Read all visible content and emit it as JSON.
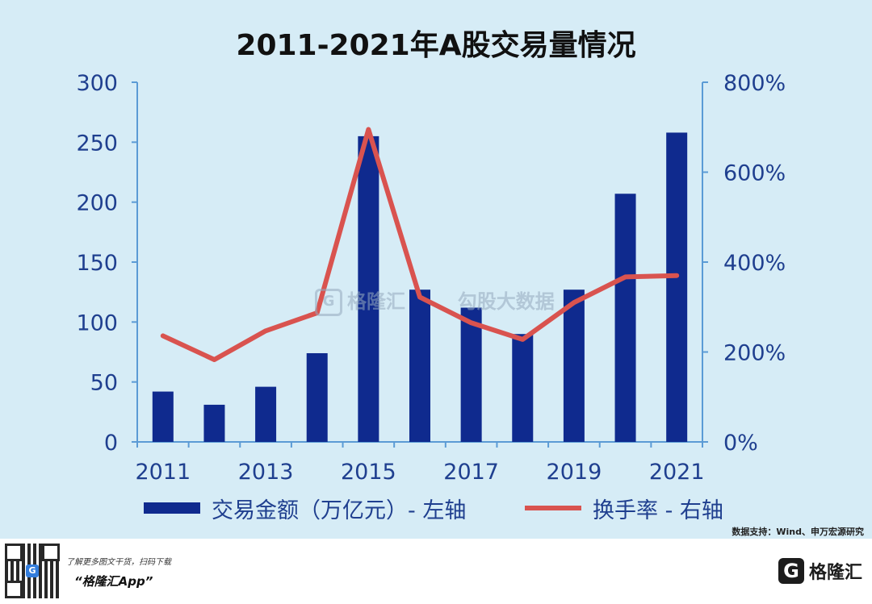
{
  "chart_data": {
    "type": "bar",
    "title": "2011-2021年A股交易量情况",
    "categories": [
      "2011",
      "2012",
      "2013",
      "2014",
      "2015",
      "2016",
      "2017",
      "2018",
      "2019",
      "2020",
      "2021"
    ],
    "x_tick_labels": [
      "2011",
      "2013",
      "2015",
      "2017",
      "2019",
      "2021"
    ],
    "y_left": {
      "min": 0,
      "max": 300,
      "ticks": [
        "0",
        "50",
        "100",
        "150",
        "200",
        "250",
        "300"
      ]
    },
    "y_right": {
      "min": 0,
      "max": 800,
      "ticks": [
        "0%",
        "200%",
        "400%",
        "600%",
        "800%"
      ]
    },
    "series": [
      {
        "name": "交易金额（万亿元）- 左轴",
        "type": "bar",
        "axis": "left",
        "color": "#0f2a8e",
        "values": [
          42,
          31,
          46,
          74,
          255,
          127,
          112,
          90,
          127,
          207,
          258
        ]
      },
      {
        "name": "换手率 - 右轴",
        "type": "line",
        "axis": "right",
        "color": "#d9534f",
        "values": [
          236,
          183,
          247,
          287,
          695,
          322,
          265,
          228,
          310,
          367,
          370
        ]
      }
    ],
    "legend_position": "bottom",
    "grid": false
  },
  "source_text": "数据支持：Wind、申万宏源研究",
  "watermark": {
    "text1": "格隆汇",
    "text2": "勾股大数据"
  },
  "footer": {
    "line1": "了解更多图文干货，扫码下载",
    "line2": "“格隆汇App”",
    "brand": "格隆汇",
    "brand_icon": "G"
  }
}
